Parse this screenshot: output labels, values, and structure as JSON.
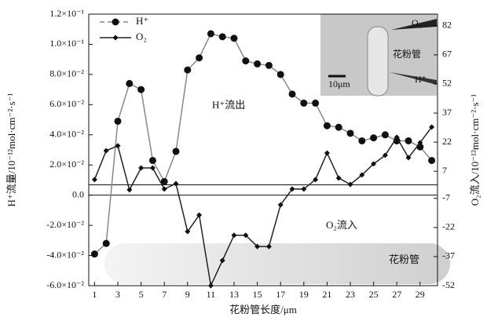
{
  "chart_data": {
    "type": "line",
    "y_label": "H⁺流量/10⁻¹²mol·cm⁻²·s⁻¹",
    "y2_label": "O₂流入/10⁻¹²mol·cm⁻²·s⁻¹",
    "x_label": "花粉管长度/μm",
    "x": [
      1,
      2,
      3,
      4,
      5,
      6,
      7,
      8,
      9,
      10,
      11,
      12,
      13,
      14,
      15,
      16,
      17,
      18,
      19,
      20,
      21,
      22,
      23,
      24,
      25,
      26,
      27,
      28,
      29,
      30
    ],
    "xlim": [
      0.5,
      30.5
    ],
    "xticks": [
      1,
      3,
      5,
      7,
      9,
      11,
      13,
      15,
      17,
      19,
      21,
      23,
      25,
      27,
      29
    ],
    "ylim": [
      -0.06,
      0.12
    ],
    "yticks": [
      {
        "value": 0.12,
        "label": "1.2×10⁻¹"
      },
      {
        "value": 0.1,
        "label": "1.0×10⁻¹"
      },
      {
        "value": 0.08,
        "label": "8.0×10⁻²"
      },
      {
        "value": 0.06,
        "label": "6.0×10⁻²"
      },
      {
        "value": 0.04,
        "label": "4.0×10⁻²"
      },
      {
        "value": 0.02,
        "label": "2.0×10⁻²"
      },
      {
        "value": 0,
        "label": "0.0"
      },
      {
        "value": -0.02,
        "label": "-2.0×10⁻²"
      },
      {
        "value": -0.04,
        "label": "-4.0×10⁻²"
      },
      {
        "value": -0.06,
        "label": "-6.0×10⁻²"
      }
    ],
    "y2lim": [
      -52,
      88
    ],
    "y2ticks": [
      82,
      67,
      52,
      37,
      22,
      7,
      -7,
      -22,
      -37,
      -52
    ],
    "legend": "upper left",
    "series": [
      {
        "name": "H⁺",
        "color": "#111111",
        "line_color": "#888888",
        "marker": "circle",
        "values": [
          -0.039,
          -0.032,
          0.049,
          0.074,
          0.07,
          0.023,
          0.009,
          0.029,
          0.083,
          0.091,
          0.107,
          0.105,
          0.104,
          0.089,
          0.087,
          0.086,
          0.08,
          0.067,
          0.061,
          0.061,
          0.046,
          0.045,
          0.041,
          0.036,
          0.038,
          0.04,
          0.036,
          0.036,
          0.032,
          0.023
        ]
      },
      {
        "name": "O₂",
        "color": "#111111",
        "line_color": "#222222",
        "marker": "diamond",
        "axis": "y2",
        "values": [
          2.7,
          17.6,
          20.1,
          -2.6,
          8.7,
          8.7,
          -2.2,
          0.6,
          -24.1,
          -15.6,
          -52,
          -39,
          -26,
          -26,
          -31.8,
          -31.8,
          -10.3,
          -2.2,
          -2.2,
          2.7,
          16.4,
          3.5,
          0.2,
          5.1,
          10.8,
          15.2,
          24.5,
          14,
          21.7,
          29.8
        ]
      }
    ],
    "annotations": [
      "H⁺流出",
      "O₂流入",
      "花粉管"
    ],
    "inset_labels": [
      "O₂",
      "花粉管",
      "10μm",
      "H⁺"
    ]
  }
}
